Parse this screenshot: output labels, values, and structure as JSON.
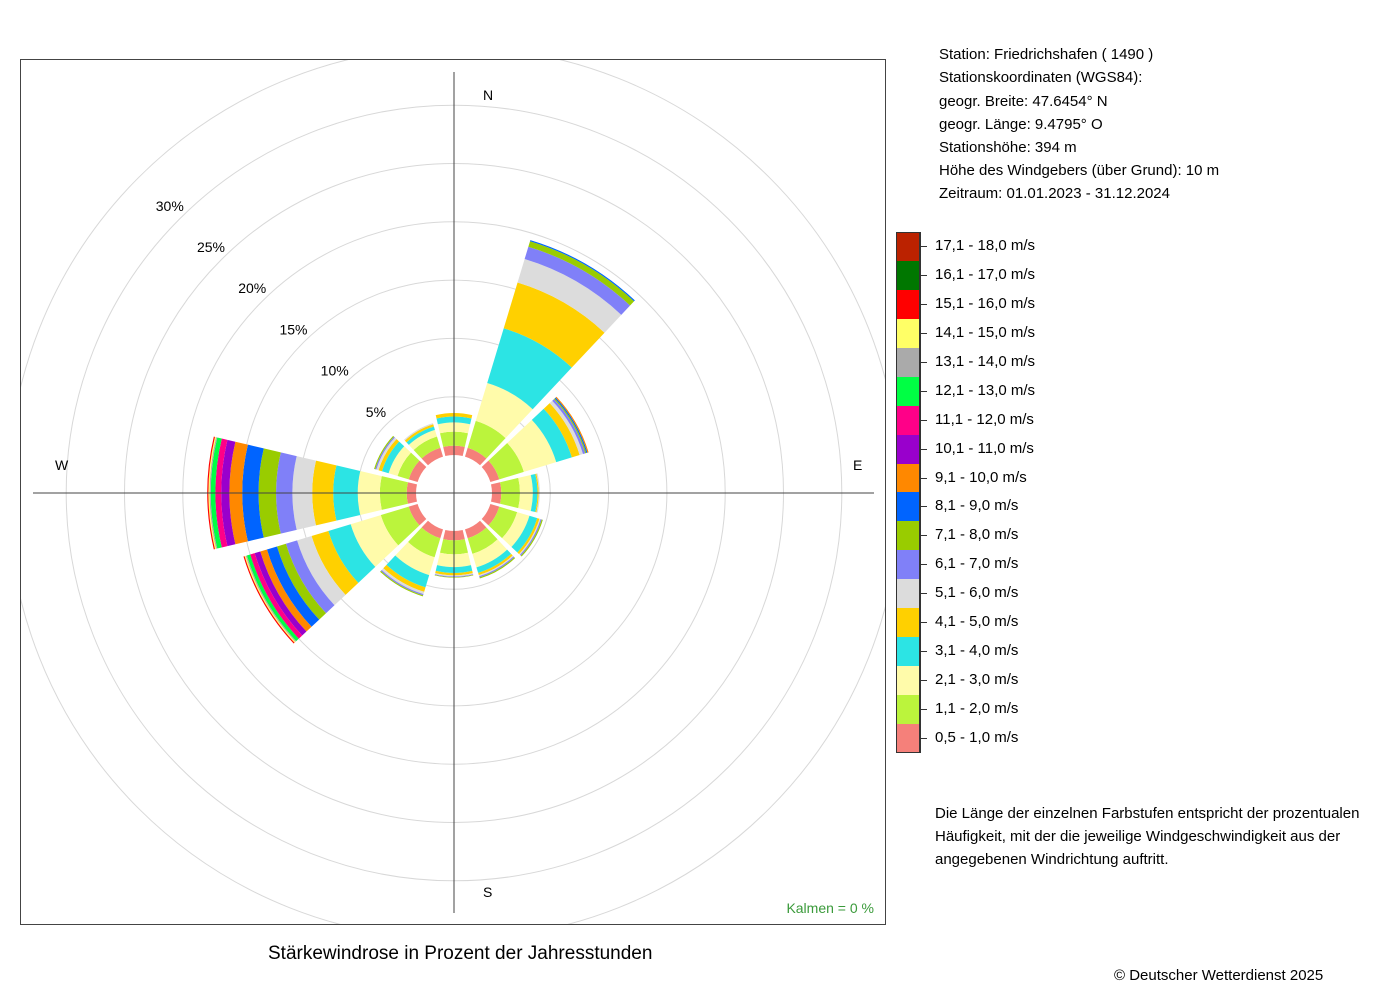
{
  "chart_data": {
    "type": "windrose",
    "title": "Stärkewindrose in Prozent der Jahresstunden",
    "direction_labels": [
      "N",
      "E",
      "S",
      "W"
    ],
    "ring_labels": [
      "5%",
      "10%",
      "15%",
      "20%",
      "25%",
      "30%"
    ],
    "ring_values": [
      5,
      10,
      15,
      20,
      25,
      30,
      35
    ],
    "calm_label": "Kalmen  =  0 %",
    "directions_deg": [
      0,
      30,
      60,
      90,
      120,
      150,
      180,
      210,
      240,
      270,
      300,
      330
    ],
    "speed_classes": [
      {
        "label": "0,5 - 1,0 m/s",
        "color": "#f5807a"
      },
      {
        "label": "1,1 - 2,0 m/s",
        "color": "#bbf43c"
      },
      {
        "label": "2,1 - 3,0 m/s",
        "color": "#fffbaa"
      },
      {
        "label": "3,1 - 4,0 m/s",
        "color": "#2ce4e4"
      },
      {
        "label": "4,1 - 5,0 m/s",
        "color": "#ffd000"
      },
      {
        "label": "5,1 - 6,0 m/s",
        "color": "#dcdcdc"
      },
      {
        "label": "6,1 - 7,0 m/s",
        "color": "#8080f8"
      },
      {
        "label": "7,1 - 8,0 m/s",
        "color": "#99cc00"
      },
      {
        "label": "8,1 - 9,0 m/s",
        "color": "#0064ff"
      },
      {
        "label": "9,1 - 10,0 m/s",
        "color": "#ff8800"
      },
      {
        "label": "10,1 - 11,0 m/s",
        "color": "#9900cc"
      },
      {
        "label": "11,1 - 12,0 m/s",
        "color": "#ff0088"
      },
      {
        "label": "12,1 - 13,0 m/s",
        "color": "#00ff44"
      },
      {
        "label": "13,1 - 14,0 m/s",
        "color": "#aaaaaa"
      },
      {
        "label": "14,1 - 15,0 m/s",
        "color": "#ffff66"
      },
      {
        "label": "15,1 - 16,0 m/s",
        "color": "#ff0000"
      },
      {
        "label": "16,1 - 17,0 m/s",
        "color": "#007700"
      },
      {
        "label": "17,1 - 18,0 m/s",
        "color": "#bb2200"
      }
    ],
    "cumulative_percent": [
      [
        0.8,
        2.0,
        2.8,
        3.3,
        3.6
      ],
      [
        0.8,
        3.2,
        6.6,
        11.5,
        15.6,
        17.7,
        18.8,
        19.3,
        19.4
      ],
      [
        0.8,
        3.0,
        5.9,
        7.3,
        8.0,
        8.3,
        8.5,
        8.6,
        8.7,
        8.8
      ],
      [
        0.8,
        2.4,
        3.5,
        3.9,
        4.0,
        4.1
      ],
      [
        0.8,
        2.4,
        3.5,
        4.2,
        4.4,
        4.5,
        4.6,
        4.7
      ],
      [
        0.8,
        2.2,
        3.4,
        3.9,
        4.1,
        4.2,
        4.3,
        4.4
      ],
      [
        0.8,
        2.0,
        3.1,
        3.6,
        3.8,
        3.9,
        3.95,
        4.0
      ],
      [
        0.8,
        2.5,
        4.1,
        5.2,
        5.6,
        5.8,
        5.9,
        6.0
      ],
      [
        0.8,
        3.3,
        6.0,
        8.0,
        9.5,
        10.8,
        11.8,
        12.6,
        13.5,
        14.1,
        14.6,
        15.0,
        15.3,
        15.4,
        15.5,
        15.6
      ],
      [
        0.8,
        3.1,
        5.0,
        7.1,
        8.9,
        10.6,
        12.0,
        13.5,
        14.9,
        16.0,
        16.7,
        17.2,
        17.6,
        17.7,
        17.8,
        17.9
      ],
      [
        0.8,
        1.8,
        2.6,
        3.2,
        3.5,
        3.7,
        3.8,
        3.9
      ],
      [
        0.8,
        1.8,
        2.4,
        2.7,
        2.9,
        3.0
      ]
    ]
  },
  "station": {
    "line1": "Station:  Friedrichshafen  ( 1490 )",
    "line2": "Stationskoordinaten (WGS84):",
    "line3": "geogr. Breite: 47.6454° N",
    "line4": "geogr. Länge:   9.4795° O",
    "line5": "Stationshöhe: 394 m",
    "line6": "Höhe des Windgebers (über Grund): 10 m",
    "line7": "Zeitraum: 01.01.2023 - 31.12.2024"
  },
  "note": {
    "line1": "Die Länge der einzelnen Farbstufen entspricht der prozentualen",
    "line2": "Häufigkeit, mit der die jeweilige Windgeschwindigkeit aus der",
    "line3": "angegebenen Windrichtung auftritt."
  },
  "copyright": "© Deutscher Wetterdienst  2025",
  "colors": {
    "calm_text": "#3a9a3a",
    "grid": "#d8d8d8",
    "axis": "#444444"
  }
}
